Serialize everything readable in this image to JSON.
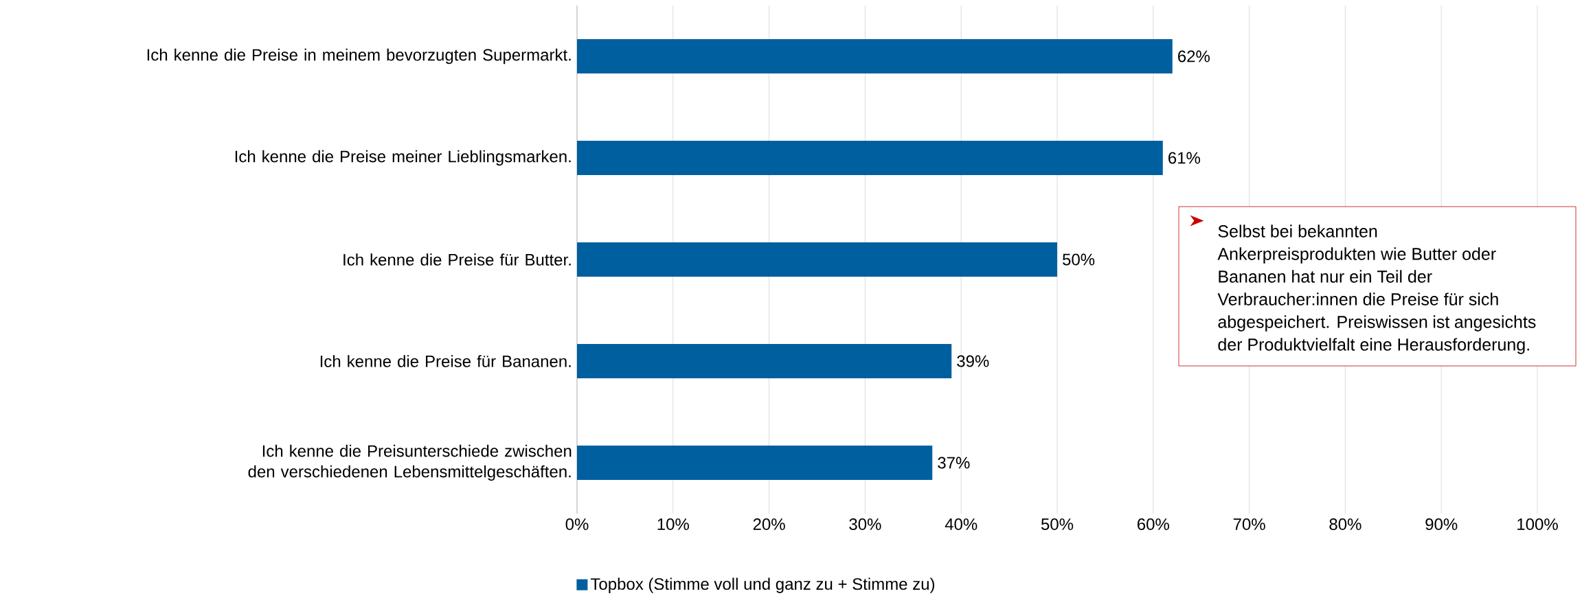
{
  "chart_data": {
    "type": "bar",
    "orientation": "horizontal",
    "categories": [
      "Ich kenne die Preise in meinem bevorzugten Supermarkt.",
      "Ich kenne die Preise meiner Lieblingsmarken.",
      "Ich kenne die Preise für Butter.",
      "Ich kenne die Preise für Bananen.",
      "Ich kenne die Preisunterschiede zwischen den verschiedenen Lebensmittelgeschäften."
    ],
    "series": [
      {
        "name": "Topbox (Stimme voll und ganz zu + Stimme zu)",
        "color": "#005f9e",
        "values": [
          62,
          61,
          50,
          39,
          37
        ],
        "value_labels": [
          "62%",
          "61%",
          "50%",
          "39%",
          "37%"
        ]
      }
    ],
    "xlim": [
      0,
      100
    ],
    "xticks": [
      {
        "value": 0,
        "label": "0%"
      },
      {
        "value": 10,
        "label": "10%"
      },
      {
        "value": 20,
        "label": "20%"
      },
      {
        "value": 30,
        "label": "30%"
      },
      {
        "value": 40,
        "label": "40%"
      },
      {
        "value": 50,
        "label": "50%"
      },
      {
        "value": 60,
        "label": "60%"
      },
      {
        "value": 70,
        "label": "70%"
      },
      {
        "value": 80,
        "label": "80%"
      },
      {
        "value": 90,
        "label": "90%"
      },
      {
        "value": 100,
        "label": "100%"
      }
    ],
    "grid": "x",
    "legend": "bottom",
    "annotations": [
      "Selbst bei bekannten Ankerpreisprodukten wie Butter oder Bananen hat nur ein Teil der Verbraucher:innen die Preise für sich abgespeichert. Preiswissen ist angesichts der Produktvielfalt eine Herausforderung."
    ]
  }
}
